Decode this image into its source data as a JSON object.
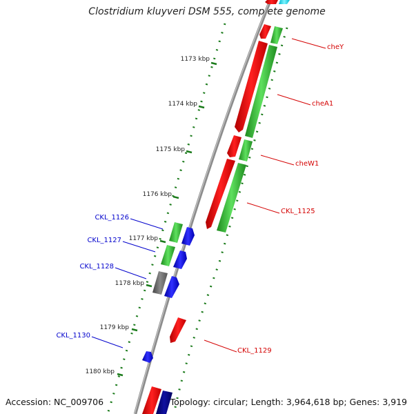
{
  "title": "Clostridium kluyveri DSM 555, complete genome",
  "accession": "Accession: NC_009706",
  "topology": "Topology: circular; Length: 3,964,618 bp; Genes: 3,919",
  "colors": {
    "backbone": "#8c8c8c",
    "tick": "#1a7a1a",
    "forward_gene": "#ff0000",
    "forward_cds": "#33cc33",
    "reverse_gene": "#0000ff",
    "reverse_cds": "#33cc33",
    "pseudo_cds": "#666666",
    "cyan_gene": "#00e5ff",
    "navy_gene": "#000080",
    "label_red": "#d40000",
    "label_blue": "#0000cc"
  },
  "scale_labels": [
    "1173 kbp",
    "1174 kbp",
    "1175 kbp",
    "1176 kbp",
    "1177 kbp",
    "1178 kbp",
    "1179 kbp",
    "1180 kbp"
  ],
  "gene_labels": {
    "right": [
      "cheY",
      "cheA1",
      "cheW1",
      "CKL_1125",
      "CKL_1129"
    ],
    "left": [
      "CKL_1126",
      "CKL_1127",
      "CKL_1128",
      "CKL_1130"
    ]
  }
}
